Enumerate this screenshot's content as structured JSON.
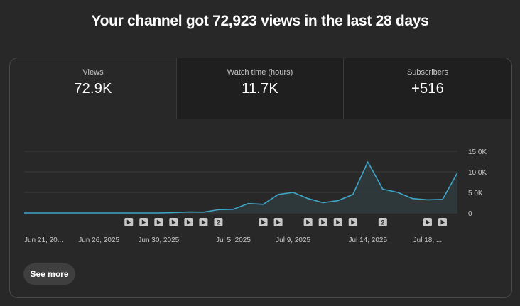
{
  "headline": "Your channel got 72,923 views in the last 28 days",
  "metrics": [
    {
      "label": "Views",
      "value": "72.9K"
    },
    {
      "label": "Watch time (hours)",
      "value": "11.7K"
    },
    {
      "label": "Subscribers",
      "value": "+516"
    }
  ],
  "see_more_label": "See more",
  "colors": {
    "line": "#3ea6c8",
    "area": "#2f3a3d",
    "marker": "#c8c8c8"
  },
  "marker_icon": "play-icon",
  "chart_data": {
    "type": "area",
    "series": [
      {
        "values": [
          0,
          0,
          0,
          0,
          0,
          0,
          0,
          0,
          0,
          0,
          100,
          250,
          200,
          800,
          900,
          2300,
          2100,
          4500,
          5000,
          3500,
          2500,
          3000,
          4500,
          12400,
          5800,
          5000,
          3500,
          3200,
          3300,
          9800
        ]
      }
    ],
    "ylim": [
      0,
      15000
    ],
    "y_ticks": [
      {
        "value": 0,
        "label": "0"
      },
      {
        "value": 5000,
        "label": "5.0K"
      },
      {
        "value": 10000,
        "label": "10.0K"
      },
      {
        "value": 15000,
        "label": "15.0K"
      }
    ],
    "x_labels": [
      {
        "index": 0,
        "label": "Jun 21, 20..."
      },
      {
        "index": 5,
        "label": "Jun 26, 2025"
      },
      {
        "index": 9,
        "label": "Jun 30, 2025"
      },
      {
        "index": 14,
        "label": "Jul 5, 2025"
      },
      {
        "index": 18,
        "label": "Jul 9, 2025"
      },
      {
        "index": 23,
        "label": "Jul 14, 2025"
      },
      {
        "index": 27,
        "label": "Jul 18, ..."
      }
    ],
    "markers": [
      {
        "index": 7,
        "label": ""
      },
      {
        "index": 8,
        "label": ""
      },
      {
        "index": 9,
        "label": ""
      },
      {
        "index": 10,
        "label": ""
      },
      {
        "index": 11,
        "label": ""
      },
      {
        "index": 12,
        "label": ""
      },
      {
        "index": 13,
        "label": "2"
      },
      {
        "index": 16,
        "label": ""
      },
      {
        "index": 17,
        "label": ""
      },
      {
        "index": 19,
        "label": ""
      },
      {
        "index": 20,
        "label": ""
      },
      {
        "index": 21,
        "label": ""
      },
      {
        "index": 22,
        "label": ""
      },
      {
        "index": 24,
        "label": "2"
      },
      {
        "index": 27,
        "label": ""
      },
      {
        "index": 28,
        "label": ""
      }
    ]
  }
}
